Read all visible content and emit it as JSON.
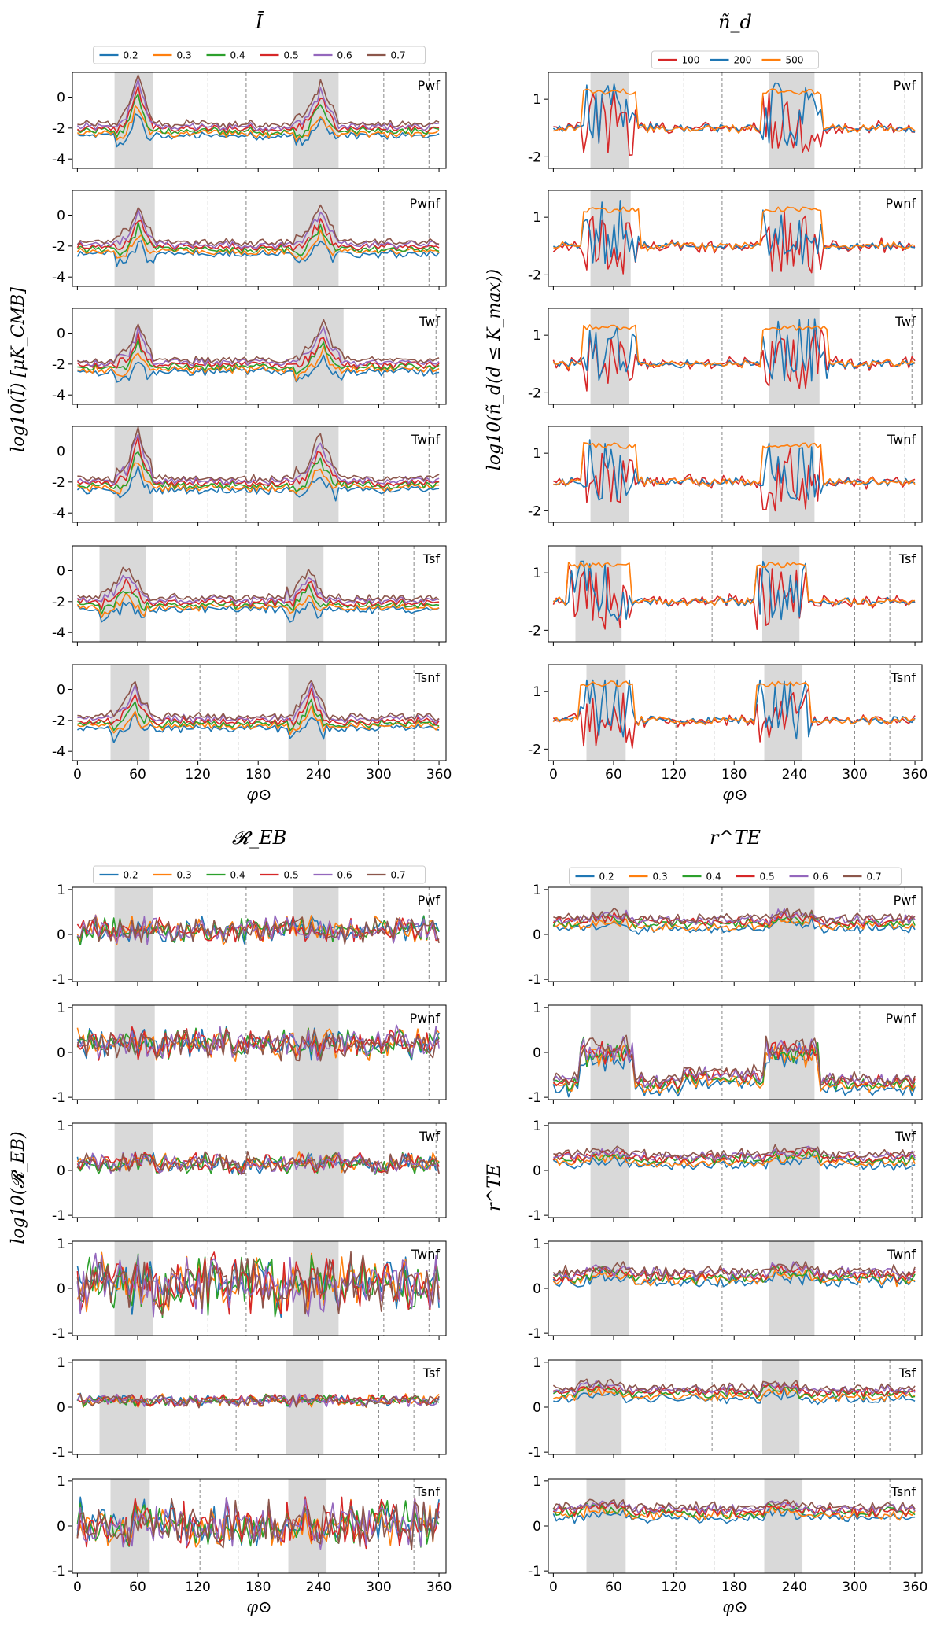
{
  "figure": {
    "description": "4 groups of 6 stacked panels",
    "xlabel": "φ⊙",
    "xticks": [
      0,
      60,
      120,
      180,
      240,
      300,
      360
    ],
    "panel_names": [
      "Pwf",
      "Pwnf",
      "Twf",
      "Twnf",
      "Tsf",
      "Tsnf"
    ],
    "shaded_regions": [
      [
        [
          37,
          75
        ],
        [
          215,
          260
        ]
      ],
      [
        [
          37,
          77
        ],
        [
          215,
          260
        ]
      ],
      [
        [
          37,
          75
        ],
        [
          215,
          265
        ]
      ],
      [
        [
          37,
          75
        ],
        [
          215,
          260
        ]
      ],
      [
        [
          22,
          68
        ],
        [
          208,
          245
        ]
      ],
      [
        [
          33,
          72
        ],
        [
          210,
          248
        ]
      ]
    ],
    "dashed_lines": [
      [
        130,
        168,
        305,
        350
      ],
      [
        130,
        168,
        305,
        350
      ],
      [
        130,
        168,
        305,
        357
      ],
      [
        130,
        168,
        305,
        350
      ],
      [
        112,
        158,
        300,
        335
      ],
      [
        122,
        160,
        300,
        335
      ]
    ]
  },
  "chart_data": [
    {
      "type": "line",
      "title": "Ī",
      "ylabel": "log10(Ī) [μK_CMB]",
      "ylim": [
        -4.6,
        1.6
      ],
      "yticks": [
        -4,
        -2,
        0
      ],
      "legend": {
        "placement": "top",
        "entries": [
          "0.2",
          "0.3",
          "0.4",
          "0.5",
          "0.6",
          "0.7"
        ]
      },
      "series_colors": [
        "#1f77b4",
        "#ff7f0e",
        "#2ca02c",
        "#d62728",
        "#9467bd",
        "#8c564b"
      ],
      "panels": [
        "Pwf",
        "Pwnf",
        "Twf",
        "Twnf",
        "Tsf",
        "Tsnf"
      ],
      "series_offsets": [
        -0.45,
        -0.3,
        -0.15,
        0.0,
        0.15,
        0.3
      ],
      "baseline": -2.05,
      "peak_values": [
        [
          1.1,
          0.4
        ],
        [
          0.0,
          0.0
        ],
        [
          0.0,
          0.1
        ],
        [
          1.1,
          0.5
        ],
        [
          -0.3,
          -0.3
        ],
        [
          0.0,
          0.1
        ]
      ]
    },
    {
      "type": "line",
      "title": "ñ_d",
      "ylabel": "log10(ñ_d(d ≤ K_max))",
      "ylim": [
        -2.6,
        2.4
      ],
      "yticks": [
        -2,
        1
      ],
      "legend": {
        "placement": "top",
        "entries": [
          "100",
          "200",
          "500"
        ]
      },
      "series_colors": [
        "#d62728",
        "#1f77b4",
        "#ff7f0e"
      ],
      "panels": [
        "Pwf",
        "Pwnf",
        "Twf",
        "Twnf",
        "Tsf",
        "Tsnf"
      ],
      "baseline": -0.5,
      "plateau_value": 1.4,
      "peak_values": [
        [
          1.9,
          1.6
        ],
        [
          1.9,
          1.9
        ],
        [
          1.9,
          1.9
        ],
        [
          1.9,
          1.6
        ],
        [
          1.6,
          1.9
        ],
        [
          1.6,
          1.5
        ]
      ]
    },
    {
      "type": "line",
      "title": "𝓡_EB",
      "ylabel": "log10(𝓡_EB)",
      "ylim": [
        -1.05,
        1.05
      ],
      "yticks": [
        -1,
        0,
        1
      ],
      "legend": {
        "placement": "top",
        "entries": [
          "0.2",
          "0.3",
          "0.4",
          "0.5",
          "0.6",
          "0.7"
        ]
      },
      "series_colors": [
        "#1f77b4",
        "#ff7f0e",
        "#2ca02c",
        "#d62728",
        "#9467bd",
        "#8c564b"
      ],
      "panels": [
        "Pwf",
        "Pwnf",
        "Twf",
        "Twnf",
        "Tsf",
        "Tsnf"
      ],
      "baselines": [
        0.1,
        0.2,
        0.15,
        0.1,
        0.15,
        0.05
      ],
      "noise_amplitudes": [
        0.25,
        0.3,
        0.2,
        0.55,
        0.12,
        0.45
      ]
    },
    {
      "type": "line",
      "title": "r^TE",
      "ylabel": "r^TE",
      "ylim": [
        -1.05,
        1.05
      ],
      "yticks": [
        -1,
        0,
        1
      ],
      "legend": {
        "placement": "top",
        "entries": [
          "0.2",
          "0.3",
          "0.4",
          "0.5",
          "0.6",
          "0.7"
        ]
      },
      "series_colors": [
        "#1f77b4",
        "#ff7f0e",
        "#2ca02c",
        "#d62728",
        "#9467bd",
        "#8c564b"
      ],
      "panels": [
        "Pwf",
        "Pwnf",
        "Twf",
        "Twnf",
        "Tsf",
        "Tsnf"
      ],
      "baselines": [
        0.25,
        -0.7,
        0.25,
        0.25,
        0.3,
        0.3
      ],
      "series_offsets": [
        -0.12,
        -0.06,
        0.0,
        0.04,
        0.08,
        0.12
      ],
      "noise_amplitudes": [
        0.12,
        0.15,
        0.12,
        0.15,
        0.1,
        0.12
      ]
    }
  ]
}
